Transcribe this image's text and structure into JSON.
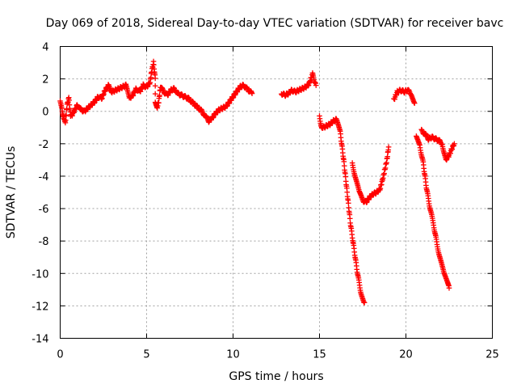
{
  "chart_data": {
    "type": "scatter",
    "title": "Day 069 of 2018, Sidereal Day-to-day VTEC variation (SDTVAR) for receiver bavc",
    "xlabel": "GPS time / hours",
    "ylabel": "SDTVAR / TECUs",
    "xlim": [
      0,
      25
    ],
    "ylim": [
      -14,
      4
    ],
    "xticks": [
      "0",
      "5",
      "10",
      "15",
      "20",
      "25"
    ],
    "yticks": [
      "4",
      "2",
      "0",
      "-2",
      "-4",
      "-6",
      "-8",
      "-10",
      "-12",
      "-14"
    ],
    "grid": true,
    "marker": "plus",
    "color": "#ff0000",
    "series": [
      {
        "name": "SDTVAR",
        "segments": [
          [
            [
              0.0,
              0.6
            ],
            [
              0.1,
              0.2
            ],
            [
              0.2,
              -0.5
            ],
            [
              0.3,
              -0.7
            ],
            [
              0.4,
              0.4
            ],
            [
              0.5,
              0.8
            ],
            [
              0.6,
              -0.3
            ],
            [
              0.7,
              -0.2
            ],
            [
              0.9,
              0.2
            ],
            [
              1.0,
              0.4
            ],
            [
              1.2,
              0.1
            ],
            [
              1.4,
              0.0
            ],
            [
              1.6,
              0.2
            ],
            [
              1.8,
              0.4
            ],
            [
              2.0,
              0.6
            ],
            [
              2.2,
              0.9
            ],
            [
              2.4,
              0.8
            ],
            [
              2.6,
              1.3
            ],
            [
              2.8,
              1.6
            ],
            [
              3.0,
              1.2
            ],
            [
              3.2,
              1.3
            ],
            [
              3.4,
              1.4
            ],
            [
              3.6,
              1.5
            ],
            [
              3.8,
              1.6
            ],
            [
              4.0,
              0.8
            ],
            [
              4.2,
              1.0
            ],
            [
              4.4,
              1.4
            ],
            [
              4.6,
              1.2
            ],
            [
              4.8,
              1.6
            ],
            [
              5.0,
              1.5
            ],
            [
              5.2,
              1.8
            ],
            [
              5.3,
              2.5
            ],
            [
              5.4,
              3.0
            ],
            [
              5.5,
              2.0
            ],
            [
              5.5,
              0.5
            ],
            [
              5.6,
              0.2
            ],
            [
              5.7,
              0.6
            ],
            [
              5.8,
              1.5
            ],
            [
              6.0,
              1.2
            ],
            [
              6.2,
              1.0
            ],
            [
              6.4,
              1.3
            ],
            [
              6.6,
              1.4
            ],
            [
              6.8,
              1.1
            ],
            [
              7.0,
              1.0
            ],
            [
              7.2,
              0.9
            ],
            [
              7.4,
              0.8
            ],
            [
              7.6,
              0.6
            ],
            [
              7.8,
              0.4
            ],
            [
              8.0,
              0.2
            ],
            [
              8.2,
              0.0
            ],
            [
              8.4,
              -0.3
            ],
            [
              8.6,
              -0.6
            ],
            [
              8.8,
              -0.4
            ],
            [
              9.0,
              -0.1
            ],
            [
              9.2,
              0.1
            ],
            [
              9.4,
              0.2
            ],
            [
              9.6,
              0.3
            ],
            [
              9.8,
              0.6
            ],
            [
              10.0,
              0.9
            ],
            [
              10.2,
              1.2
            ],
            [
              10.4,
              1.5
            ],
            [
              10.6,
              1.6
            ],
            [
              10.8,
              1.4
            ],
            [
              11.0,
              1.2
            ],
            [
              11.1,
              1.1
            ]
          ],
          [
            [
              12.8,
              1.1
            ],
            [
              13.0,
              1.0
            ],
            [
              13.2,
              1.1
            ],
            [
              13.4,
              1.3
            ],
            [
              13.6,
              1.2
            ],
            [
              13.8,
              1.3
            ],
            [
              14.0,
              1.4
            ],
            [
              14.2,
              1.5
            ],
            [
              14.4,
              1.7
            ],
            [
              14.6,
              2.3
            ],
            [
              14.7,
              1.8
            ],
            [
              14.8,
              1.6
            ]
          ],
          [
            [
              15.0,
              -0.3
            ],
            [
              15.1,
              -0.9
            ],
            [
              15.2,
              -1.0
            ],
            [
              15.4,
              -0.9
            ],
            [
              15.6,
              -0.8
            ],
            [
              15.8,
              -0.6
            ],
            [
              16.0,
              -0.5
            ],
            [
              16.2,
              -1.3
            ],
            [
              16.4,
              -3.0
            ],
            [
              16.6,
              -5.0
            ],
            [
              16.8,
              -7.0
            ],
            [
              17.0,
              -8.5
            ],
            [
              17.2,
              -10.0
            ],
            [
              17.4,
              -11.2
            ],
            [
              17.6,
              -11.8
            ]
          ],
          [
            [
              16.9,
              -3.2
            ],
            [
              17.1,
              -4.2
            ],
            [
              17.3,
              -5.0
            ],
            [
              17.5,
              -5.5
            ],
            [
              17.7,
              -5.6
            ],
            [
              17.9,
              -5.3
            ],
            [
              18.1,
              -5.1
            ],
            [
              18.3,
              -5.0
            ],
            [
              18.5,
              -4.8
            ],
            [
              18.7,
              -4.0
            ],
            [
              18.9,
              -3.0
            ],
            [
              19.0,
              -2.2
            ]
          ],
          [
            [
              19.3,
              0.7
            ],
            [
              19.5,
              1.2
            ],
            [
              19.7,
              1.3
            ],
            [
              19.9,
              1.2
            ],
            [
              20.1,
              1.3
            ],
            [
              20.3,
              1.1
            ],
            [
              20.5,
              0.5
            ]
          ],
          [
            [
              20.6,
              -1.5
            ],
            [
              20.8,
              -2.1
            ],
            [
              21.0,
              -3.2
            ],
            [
              21.2,
              -4.8
            ],
            [
              21.4,
              -6.0
            ],
            [
              21.6,
              -7.0
            ],
            [
              21.8,
              -8.2
            ],
            [
              22.0,
              -9.2
            ],
            [
              22.2,
              -10.0
            ],
            [
              22.4,
              -10.6
            ],
            [
              22.5,
              -10.9
            ]
          ],
          [
            [
              20.9,
              -1.2
            ],
            [
              21.1,
              -1.4
            ],
            [
              21.3,
              -1.7
            ],
            [
              21.5,
              -1.6
            ],
            [
              21.7,
              -1.7
            ],
            [
              21.9,
              -1.8
            ],
            [
              22.1,
              -2.0
            ],
            [
              22.3,
              -3.0
            ],
            [
              22.5,
              -2.7
            ],
            [
              22.7,
              -2.2
            ],
            [
              22.8,
              -2.0
            ]
          ]
        ]
      }
    ]
  }
}
